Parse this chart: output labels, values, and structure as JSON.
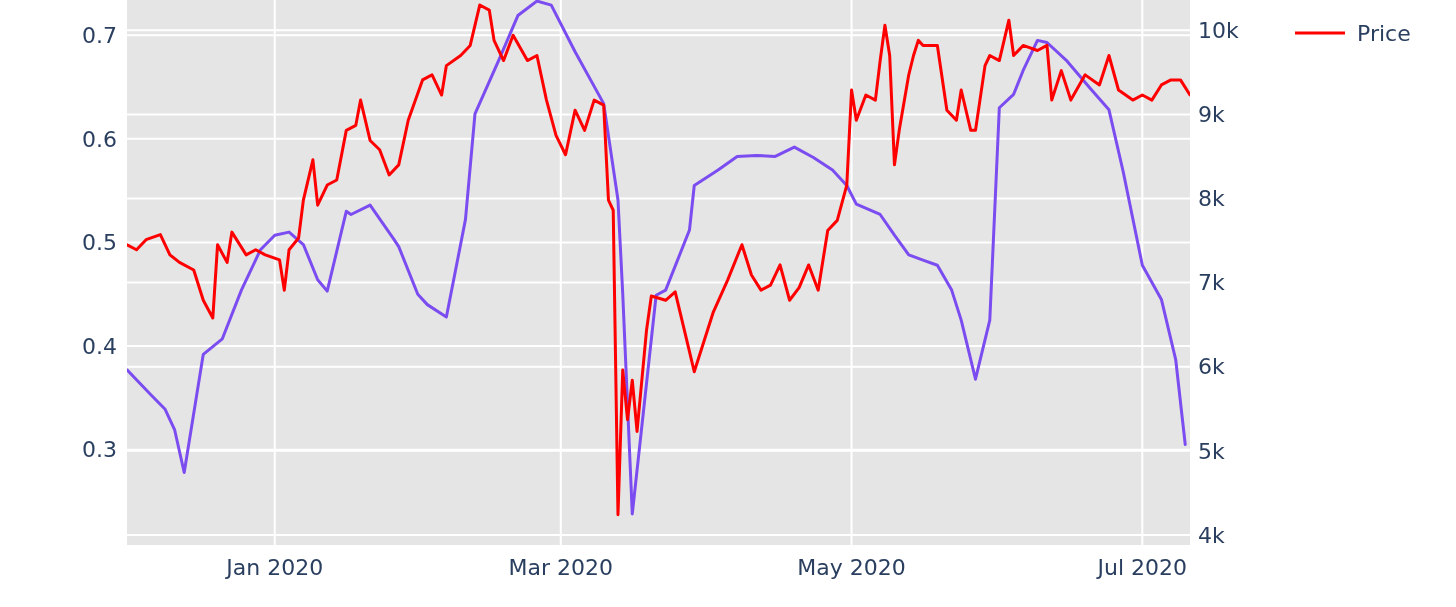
{
  "chart_data": {
    "type": "line",
    "xlim": [
      "2019-12-01",
      "2020-07-11"
    ],
    "xticks": [
      {
        "value": "2020-01-01",
        "label": "Jan 2020"
      },
      {
        "value": "2020-03-01",
        "label": "Mar 2020"
      },
      {
        "value": "2020-05-01",
        "label": "May 2020"
      },
      {
        "value": "2020-07-01",
        "label": "Jul 2020"
      }
    ],
    "ylim": [
      0.208,
      0.734
    ],
    "yticks": [
      0.3,
      0.4,
      0.5,
      0.6,
      0.7
    ],
    "y2lim": [
      3880,
      10360
    ],
    "y2ticks": [
      {
        "value": 4000,
        "label": "4k"
      },
      {
        "value": 5000,
        "label": "5k"
      },
      {
        "value": 6000,
        "label": "6k"
      },
      {
        "value": 7000,
        "label": "7k"
      },
      {
        "value": 8000,
        "label": "8k"
      },
      {
        "value": 9000,
        "label": "9k"
      },
      {
        "value": 10000,
        "label": "10k"
      }
    ],
    "grid": true,
    "legend": "top right",
    "series": [
      {
        "color": "#7b4cf0",
        "x": [
          "2019-12-01",
          "2019-12-06",
          "2019-12-09",
          "2019-12-11",
          "2019-12-13",
          "2019-12-17",
          "2019-12-21",
          "2019-12-25",
          "2019-12-29",
          "2020-01-01",
          "2020-01-04",
          "2020-01-07",
          "2020-01-10",
          "2020-01-12",
          "2020-01-16",
          "2020-01-17",
          "2020-01-21",
          "2020-01-26",
          "2020-01-27",
          "2020-01-31",
          "2020-02-02",
          "2020-02-06",
          "2020-02-10",
          "2020-02-12",
          "2020-02-17",
          "2020-02-21",
          "2020-02-25",
          "2020-02-28",
          "2020-03-04",
          "2020-03-10",
          "2020-03-13",
          "2020-03-14",
          "2020-03-16",
          "2020-03-21",
          "2020-03-23",
          "2020-03-28",
          "2020-03-29",
          "2020-04-03",
          "2020-04-07",
          "2020-04-11",
          "2020-04-15",
          "2020-04-19",
          "2020-04-23",
          "2020-04-27",
          "2020-04-30",
          "2020-05-02",
          "2020-05-07",
          "2020-05-10",
          "2020-05-13",
          "2020-05-16",
          "2020-05-19",
          "2020-05-22",
          "2020-05-24",
          "2020-05-27",
          "2020-05-30",
          "2020-06-01",
          "2020-06-04",
          "2020-06-06",
          "2020-06-09",
          "2020-06-11",
          "2020-06-15",
          "2020-06-20",
          "2020-06-24",
          "2020-06-27",
          "2020-07-01",
          "2020-07-05",
          "2020-07-08",
          "2020-07-10"
        ],
        "values": [
          0.377,
          0.353,
          0.339,
          0.319,
          0.278,
          0.392,
          0.407,
          0.454,
          0.493,
          0.507,
          0.51,
          0.498,
          0.464,
          0.453,
          0.53,
          0.527,
          0.536,
          0.503,
          0.496,
          0.45,
          0.44,
          0.428,
          0.522,
          0.624,
          0.676,
          0.719,
          0.733,
          0.729,
          0.684,
          0.634,
          0.541,
          0.45,
          0.238,
          0.449,
          0.454,
          0.512,
          0.555,
          0.57,
          0.583,
          0.584,
          0.583,
          0.592,
          0.582,
          0.57,
          0.555,
          0.537,
          0.527,
          0.507,
          0.488,
          0.483,
          0.478,
          0.454,
          0.425,
          0.368,
          0.425,
          0.63,
          0.643,
          0.666,
          0.695,
          0.693,
          0.676,
          0.649,
          0.628,
          0.568,
          0.478,
          0.445,
          0.387,
          0.305
        ]
      },
      {
        "name": "Price",
        "color": "#ff0000",
        "axis": "y2",
        "x": [
          "2019-12-01",
          "2019-12-03",
          "2019-12-05",
          "2019-12-08",
          "2019-12-10",
          "2019-12-12",
          "2019-12-15",
          "2019-12-17",
          "2019-12-19",
          "2019-12-20",
          "2019-12-22",
          "2019-12-23",
          "2019-12-26",
          "2019-12-28",
          "2019-12-30",
          "2020-01-02",
          "2020-01-03",
          "2020-01-04",
          "2020-01-06",
          "2020-01-07",
          "2020-01-09",
          "2020-01-10",
          "2020-01-12",
          "2020-01-14",
          "2020-01-16",
          "2020-01-18",
          "2020-01-19",
          "2020-01-21",
          "2020-01-23",
          "2020-01-25",
          "2020-01-27",
          "2020-01-29",
          "2020-02-01",
          "2020-02-03",
          "2020-02-05",
          "2020-02-06",
          "2020-02-09",
          "2020-02-11",
          "2020-02-13",
          "2020-02-15",
          "2020-02-16",
          "2020-02-18",
          "2020-02-20",
          "2020-02-23",
          "2020-02-25",
          "2020-02-27",
          "2020-02-29",
          "2020-03-02",
          "2020-03-04",
          "2020-03-06",
          "2020-03-08",
          "2020-03-10",
          "2020-03-11",
          "2020-03-12",
          "2020-03-13",
          "2020-03-14",
          "2020-03-15",
          "2020-03-16",
          "2020-03-17",
          "2020-03-19",
          "2020-03-20",
          "2020-03-23",
          "2020-03-25",
          "2020-03-28",
          "2020-03-29",
          "2020-04-02",
          "2020-04-05",
          "2020-04-08",
          "2020-04-10",
          "2020-04-12",
          "2020-04-14",
          "2020-04-16",
          "2020-04-18",
          "2020-04-20",
          "2020-04-22",
          "2020-04-24",
          "2020-04-26",
          "2020-04-28",
          "2020-04-30",
          "2020-05-01",
          "2020-05-02",
          "2020-05-04",
          "2020-05-06",
          "2020-05-07",
          "2020-05-08",
          "2020-05-09",
          "2020-05-10",
          "2020-05-11",
          "2020-05-13",
          "2020-05-14",
          "2020-05-15",
          "2020-05-16",
          "2020-05-19",
          "2020-05-21",
          "2020-05-23",
          "2020-05-24",
          "2020-05-26",
          "2020-05-27",
          "2020-05-29",
          "2020-05-30",
          "2020-06-01",
          "2020-06-03",
          "2020-06-04",
          "2020-06-06",
          "2020-06-09",
          "2020-06-11",
          "2020-06-12",
          "2020-06-14",
          "2020-06-16",
          "2020-06-19",
          "2020-06-22",
          "2020-06-24",
          "2020-06-26",
          "2020-06-29",
          "2020-07-01",
          "2020-07-03",
          "2020-07-05",
          "2020-07-07",
          "2020-07-09",
          "2020-07-11"
        ],
        "values": [
          7450,
          7390,
          7510,
          7570,
          7330,
          7240,
          7150,
          6790,
          6580,
          7450,
          7240,
          7600,
          7330,
          7390,
          7330,
          7270,
          6910,
          7390,
          7530,
          7980,
          8460,
          7920,
          8160,
          8220,
          8810,
          8870,
          9170,
          8690,
          8580,
          8280,
          8400,
          8930,
          9410,
          9470,
          9230,
          9580,
          9700,
          9820,
          10300,
          10240,
          9880,
          9640,
          9940,
          9640,
          9700,
          9170,
          8750,
          8520,
          9050,
          8810,
          9170,
          9110,
          7980,
          7860,
          4240,
          5960,
          5370,
          5840,
          5230,
          6440,
          6840,
          6790,
          6890,
          6180,
          5940,
          6650,
          7030,
          7450,
          7090,
          6910,
          6970,
          7210,
          6790,
          6940,
          7210,
          6910,
          7620,
          7740,
          8160,
          9290,
          8930,
          9230,
          9170,
          9640,
          10060,
          9700,
          8400,
          8810,
          9470,
          9700,
          9880,
          9820,
          9820,
          9050,
          8930,
          9290,
          8810,
          8810,
          9580,
          9700,
          9640,
          10120,
          9700,
          9820,
          9760,
          9820,
          9170,
          9520,
          9170,
          9470,
          9350,
          9700,
          9290,
          9170,
          9230,
          9170,
          9350,
          9410,
          9410,
          9230
        ]
      }
    ]
  }
}
